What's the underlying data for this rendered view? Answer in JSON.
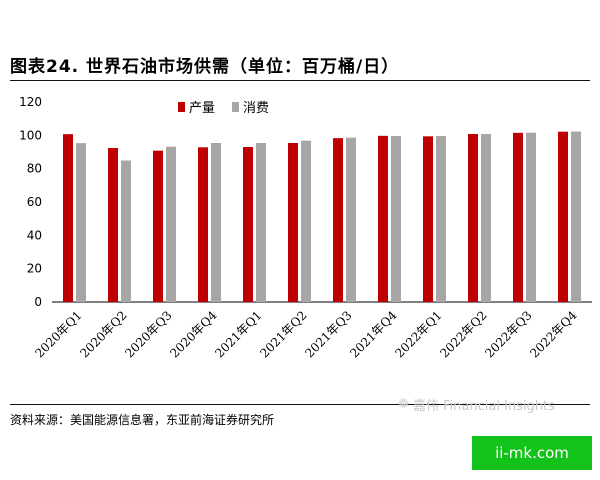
{
  "title": "图表24. 世界石油市场供需（单位：百万桶/日）",
  "source": "资料来源：美国能源信息署，东亚前海证券研究所",
  "watermark": "嘉伟 Financial Insights",
  "logo_text": "ii-mk.com",
  "colors": {
    "production": "#c00000",
    "consumption": "#a6a6a6",
    "axis": "#000000",
    "logo_bg": "#13c21b"
  },
  "icons": {
    "watermark": "wechat-icon"
  },
  "chart_data": {
    "type": "bar",
    "title": "",
    "xlabel": "",
    "ylabel": "",
    "ylim": [
      0,
      120
    ],
    "yticks": [
      0,
      20,
      40,
      60,
      80,
      100,
      120
    ],
    "grid": false,
    "legend_position": "top-left",
    "categories": [
      "2020年Q1",
      "2020年Q2",
      "2020年Q3",
      "2020年Q4",
      "2021年Q1",
      "2021年Q2",
      "2021年Q3",
      "2021年Q4",
      "2022年Q1",
      "2022年Q2",
      "2022年Q3",
      "2022年Q4"
    ],
    "series": [
      {
        "name": "产量",
        "color": "#c00000",
        "values": [
          100.7,
          92.4,
          90.8,
          92.8,
          93.0,
          95.4,
          98.3,
          99.7,
          99.4,
          100.8,
          101.5,
          102.2
        ]
      },
      {
        "name": "消费",
        "color": "#a6a6a6",
        "values": [
          95.3,
          84.9,
          93.2,
          95.4,
          95.4,
          96.8,
          98.6,
          99.6,
          99.6,
          100.8,
          101.6,
          102.3
        ]
      }
    ]
  }
}
